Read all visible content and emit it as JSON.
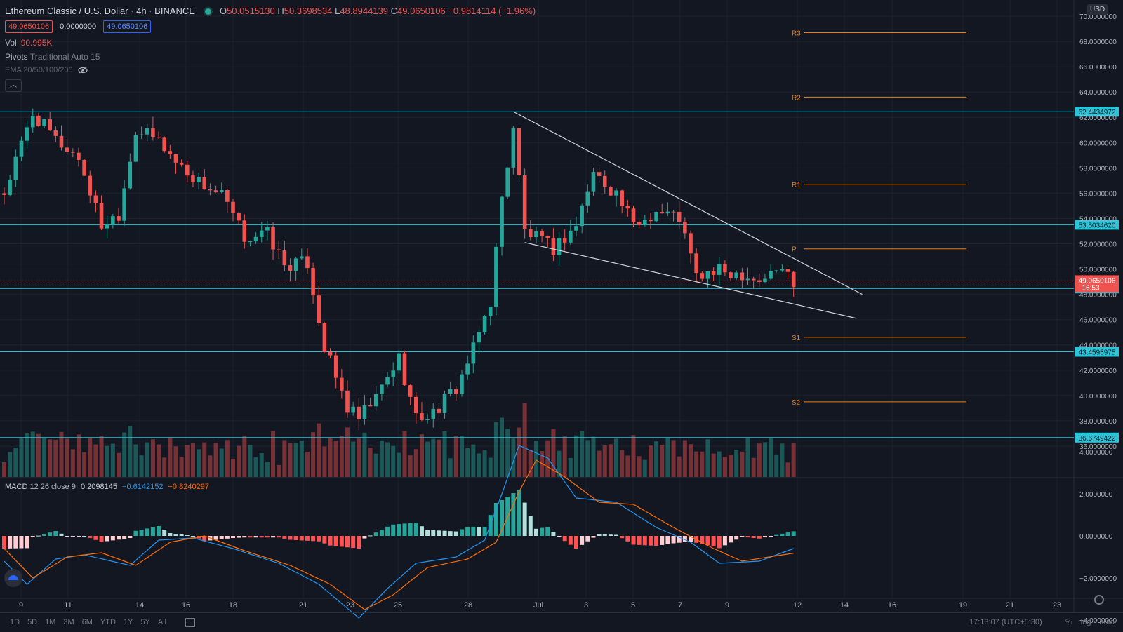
{
  "header": {
    "symbol": "Ethereum Classic / U.S. Dollar",
    "interval": "4h",
    "exchange": "BINANCE",
    "open_label": "O",
    "open": "50.0515130",
    "high_label": "H",
    "high": "50.3698534",
    "low_label": "L",
    "low": "48.8944139",
    "close_label": "C",
    "close": "49.0650106",
    "change": "−0.9814114 (−1.96%)"
  },
  "quote_boxes": {
    "sell": "49.0650106",
    "spread": "0.0000000",
    "buy": "49.0650106"
  },
  "indicators": {
    "vol_label": "Vol",
    "vol_value": "90.995K",
    "pivots_label": "Pivots",
    "pivots_settings": "Traditional Auto 15",
    "ema_label": "EMA 20/50/100/200",
    "macd_label": "MACD",
    "macd_settings": "12 26 close 9",
    "macd_hist": "0.2098145",
    "macd_line": "−0.6142152",
    "macd_signal": "−0.8240297"
  },
  "currency": "USD",
  "colors": {
    "background": "#131722",
    "up": "#26a69a",
    "down": "#ef5350",
    "hline": "#26c6da",
    "pivot": "#f57c00",
    "macd": "#2196f3",
    "signal": "#ff6d00"
  },
  "chart_data": {
    "type": "candlestick",
    "y_axis": {
      "min": 35.0,
      "max": 70.5,
      "ticks": [
        "70.0000000",
        "68.0000000",
        "66.0000000",
        "64.0000000",
        "62.0000000",
        "60.0000000",
        "58.0000000",
        "56.0000000",
        "54.0000000",
        "52.0000000",
        "50.0000000",
        "48.0000000",
        "46.0000000",
        "44.0000000",
        "42.0000000",
        "40.0000000",
        "38.0000000",
        "36.0000000"
      ]
    },
    "x_ticks": [
      "9",
      "11",
      "14",
      "16",
      "18",
      "21",
      "23",
      "25",
      "28",
      "Jul",
      "3",
      "5",
      "7",
      "9",
      "12",
      "14",
      "16",
      "19",
      "21",
      "23"
    ],
    "price_path": [
      [
        0,
        56
      ],
      [
        5,
        62.3
      ],
      [
        9,
        60.2
      ],
      [
        13,
        58.8
      ],
      [
        17,
        53.5
      ],
      [
        20,
        54.4
      ],
      [
        23,
        61
      ],
      [
        27,
        60.2
      ],
      [
        30,
        58.5
      ],
      [
        34,
        56.9
      ],
      [
        38,
        55.8
      ],
      [
        42,
        52.5
      ],
      [
        46,
        52.8
      ],
      [
        49,
        50.3
      ],
      [
        53,
        50.5
      ],
      [
        56,
        43.8
      ],
      [
        60,
        39
      ],
      [
        62,
        38.1
      ],
      [
        65,
        39.8
      ],
      [
        69,
        43
      ],
      [
        72,
        38.2
      ],
      [
        75,
        38.6
      ],
      [
        79,
        40.6
      ],
      [
        82,
        43.6
      ],
      [
        85,
        47.5
      ],
      [
        87,
        55.5
      ],
      [
        89,
        61.3
      ],
      [
        91,
        53
      ],
      [
        96,
        51.6
      ],
      [
        100,
        53.5
      ],
      [
        103,
        57.6
      ],
      [
        107,
        56
      ],
      [
        110,
        53.4
      ],
      [
        114,
        54.6
      ],
      [
        118,
        54.1
      ],
      [
        121,
        49.4
      ],
      [
        125,
        49.8
      ],
      [
        129,
        49.7
      ],
      [
        132,
        49.1
      ],
      [
        136,
        50.1
      ],
      [
        138,
        49.07
      ]
    ],
    "candle_count": 139,
    "horizontal_levels": [
      {
        "value": 62.4434972,
        "label": "62.4434972"
      },
      {
        "value": 53.503462,
        "label": "53.5034620"
      },
      {
        "value": 48.467422,
        "label": "48.4674220"
      },
      {
        "value": 43.4595975,
        "label": "43.4595975"
      },
      {
        "value": 36.6749422,
        "label": "36.6749422"
      }
    ],
    "pivots": [
      {
        "name": "R3",
        "value": 68.7
      },
      {
        "name": "R2",
        "value": 63.6
      },
      {
        "name": "R1",
        "value": 56.7
      },
      {
        "name": "P",
        "value": 51.6
      },
      {
        "name": "S1",
        "value": 44.6
      },
      {
        "name": "S2",
        "value": 39.5
      }
    ],
    "current_price": {
      "value": 49.0650106,
      "label": "49.0650106",
      "countdown": "16:53"
    },
    "trendlines": [
      {
        "from": [
          89,
          62.45
        ],
        "to": [
          150,
          48.0
        ]
      },
      {
        "from": [
          91,
          52.1
        ],
        "to": [
          149,
          46.1
        ]
      }
    ],
    "macd": {
      "y_ticks": [
        "4.0000000",
        "2.0000000",
        "0.0000000",
        "−2.0000000",
        "−4.0000000"
      ],
      "range": [
        -5.2,
        5.0
      ],
      "line_path": [
        [
          0,
          -1.2
        ],
        [
          4,
          -2.3
        ],
        [
          9,
          -1.1
        ],
        [
          14,
          -0.9
        ],
        [
          22,
          -1.4
        ],
        [
          27,
          -0.2
        ],
        [
          33,
          -0.1
        ],
        [
          40,
          -0.6
        ],
        [
          48,
          -1.3
        ],
        [
          55,
          -2.3
        ],
        [
          62,
          -3.9
        ],
        [
          67,
          -2.5
        ],
        [
          72,
          -1.3
        ],
        [
          79,
          -1.0
        ],
        [
          84,
          -0.2
        ],
        [
          87,
          2.0
        ],
        [
          90,
          4.3
        ],
        [
          95,
          3.7
        ],
        [
          100,
          1.8
        ],
        [
          107,
          1.6
        ],
        [
          114,
          0.4
        ],
        [
          120,
          -0.3
        ],
        [
          125,
          -1.3
        ],
        [
          132,
          -1.2
        ],
        [
          138,
          -0.6
        ]
      ],
      "signal_path": [
        [
          0,
          -0.6
        ],
        [
          5,
          -2.0
        ],
        [
          11,
          -1.0
        ],
        [
          17,
          -0.8
        ],
        [
          23,
          -1.4
        ],
        [
          29,
          -0.3
        ],
        [
          35,
          0
        ],
        [
          42,
          -0.7
        ],
        [
          50,
          -1.4
        ],
        [
          57,
          -2.3
        ],
        [
          63,
          -3.5
        ],
        [
          68,
          -2.8
        ],
        [
          74,
          -1.5
        ],
        [
          81,
          -1.1
        ],
        [
          86,
          -0.3
        ],
        [
          90,
          2.1
        ],
        [
          93,
          3.6
        ],
        [
          98,
          2.8
        ],
        [
          104,
          1.6
        ],
        [
          110,
          1.5
        ],
        [
          117,
          0.4
        ],
        [
          124,
          -0.6
        ],
        [
          129,
          -1.2
        ],
        [
          138,
          -0.82
        ]
      ]
    }
  },
  "range_buttons": [
    "1D",
    "5D",
    "1M",
    "3M",
    "6M",
    "YTD",
    "1Y",
    "5Y",
    "All"
  ],
  "bottom": {
    "clock": "17:13:07 (UTC+5:30)",
    "percent": "%",
    "log": "log",
    "auto": "auto"
  }
}
